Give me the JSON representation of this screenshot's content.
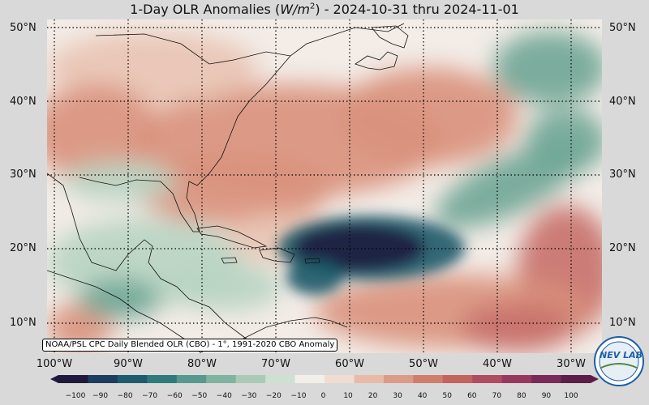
{
  "title": {
    "prefix": "1-Day OLR Anomalies (",
    "unit_base": "W/m",
    "unit_exp": "2",
    "suffix": ") - 2024-10-31 thru 2024-11-01"
  },
  "lat_labels": [
    "50°N",
    "40°N",
    "30°N",
    "20°N",
    "10°N"
  ],
  "lon_labels": [
    "100°W",
    "90°W",
    "80°W",
    "70°W",
    "60°W",
    "50°W",
    "40°W",
    "30°W"
  ],
  "credit": "NOAA/PSL CPC Daily Blended OLR (CBO) - 1°, 1991-2020 CBO Anomaly",
  "colorbar": {
    "ticks": [
      "−100",
      "−90",
      "−80",
      "−70",
      "−60",
      "−50",
      "−40",
      "−30",
      "−20",
      "−10",
      "0",
      "10",
      "20",
      "30",
      "40",
      "50",
      "60",
      "70",
      "80",
      "90",
      "100"
    ],
    "colors": [
      "#1f1a3d",
      "#1c3d5e",
      "#1e5b6e",
      "#2f7b7b",
      "#57998f",
      "#80b3a0",
      "#a9cbb6",
      "#cde0d2",
      "#f2eeea",
      "#f0dcd2",
      "#e8bba8",
      "#dc9b87",
      "#cf7d6c",
      "#c3635e",
      "#b04c60",
      "#97395f",
      "#7a2a58",
      "#5a1e47"
    ]
  },
  "logo": {
    "text": "NEV LAB"
  },
  "map_colors": {
    "ocean_neutral": "#f3ece7",
    "positive_light": "#e9c3b3",
    "positive_mid": "#d9917c",
    "positive_strong": "#c8706a",
    "negative_light": "#b8d4c2",
    "negative_mid": "#6ea595",
    "negative_strong": "#1f5a6a",
    "negative_extreme": "#1b1a3f",
    "coastline": "#111111",
    "grid": "#000000"
  }
}
